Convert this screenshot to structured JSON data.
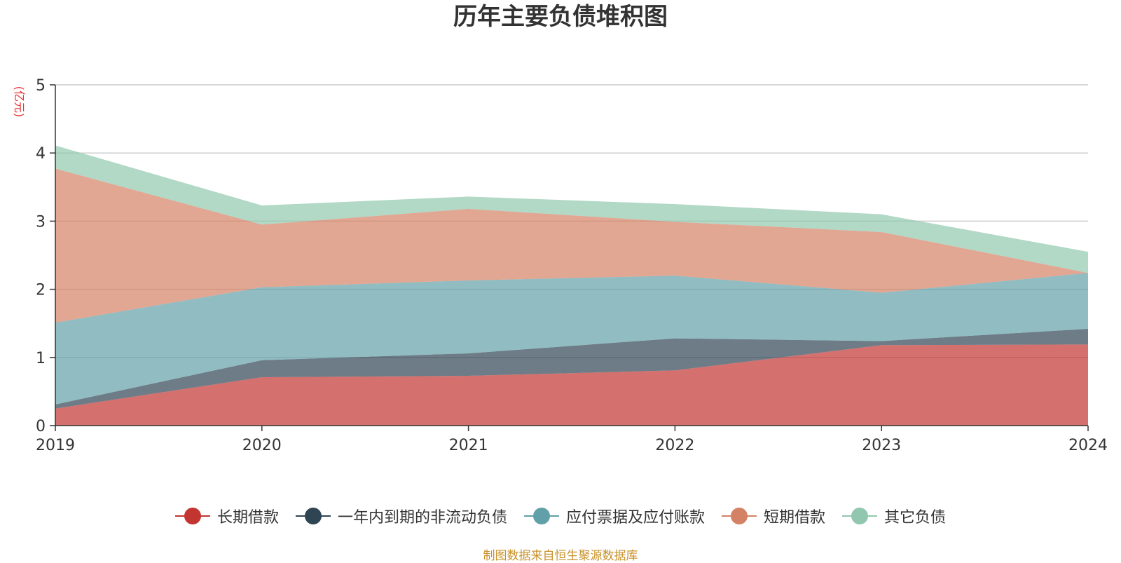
{
  "chart_data": {
    "type": "area",
    "stacked": true,
    "title": "历年主要负债堆积图",
    "ylabel": "(亿元)",
    "xlabel": "",
    "categories": [
      "2019",
      "2020",
      "2021",
      "2022",
      "2023",
      "2024"
    ],
    "ylim": [
      0,
      5
    ],
    "yticks": [
      0,
      1,
      2,
      3,
      4,
      5
    ],
    "grid": true,
    "legend_position": "bottom",
    "series": [
      {
        "name": "长期借款",
        "color": "#c23531",
        "values": [
          0.25,
          0.71,
          0.73,
          0.81,
          1.18,
          1.19
        ]
      },
      {
        "name": "一年内到期的非流动负债",
        "color": "#2f4554",
        "values": [
          0.06,
          0.25,
          0.33,
          0.47,
          0.06,
          0.23
        ]
      },
      {
        "name": "应付票据及应付账款",
        "color": "#61a0a8",
        "values": [
          1.2,
          1.07,
          1.07,
          0.92,
          0.71,
          0.82
        ]
      },
      {
        "name": "短期借款",
        "color": "#d48265",
        "values": [
          2.26,
          0.92,
          1.05,
          0.79,
          0.89,
          0.0
        ]
      },
      {
        "name": "其它负债",
        "color": "#91c7ae",
        "values": [
          0.34,
          0.28,
          0.18,
          0.26,
          0.26,
          0.31
        ]
      }
    ]
  },
  "footer": {
    "source": "制图数据来自恒生聚源数据库"
  }
}
